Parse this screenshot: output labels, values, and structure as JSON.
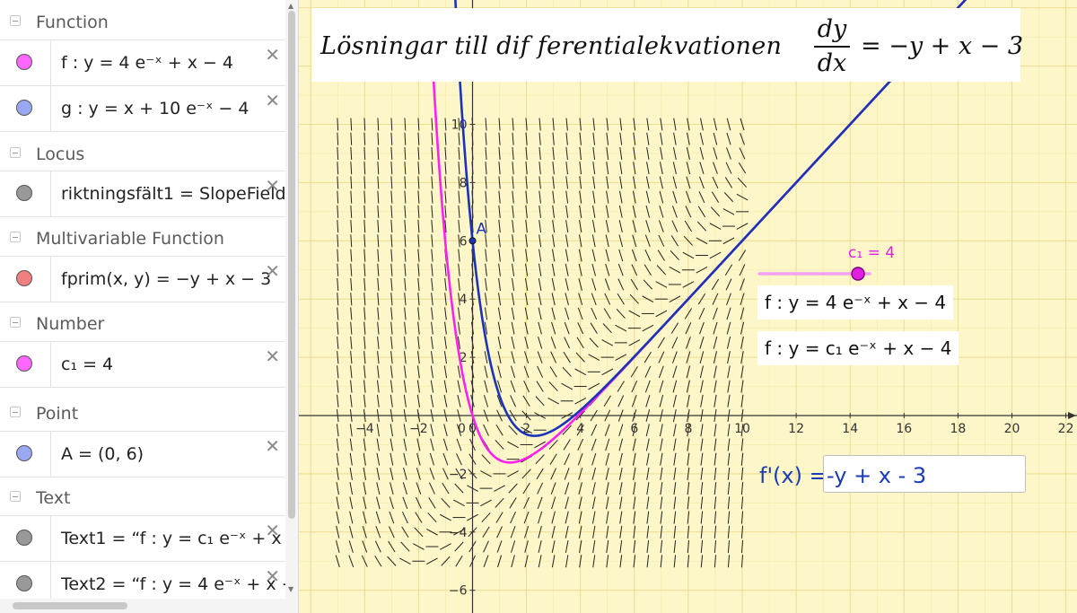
{
  "algebra": {
    "groups": [
      {
        "title": "Function",
        "items": [
          {
            "expr": "f : y = 4 e⁻ˣ + x − 4",
            "color": "#ff66ff"
          },
          {
            "expr": "g : y = x + 10 e⁻ˣ − 4",
            "color": "#99a8f0"
          }
        ]
      },
      {
        "title": "Locus",
        "items": [
          {
            "expr": "riktningsfält1 = SlopeField",
            "color": "#999999"
          }
        ]
      },
      {
        "title": "Multivariable Function",
        "items": [
          {
            "expr": "fprim(x, y) = −y + x − 3",
            "color": "#f08080"
          }
        ]
      },
      {
        "title": "Number",
        "items": [
          {
            "expr": "c₁ = 4",
            "color": "#ff66ff"
          }
        ]
      },
      {
        "title": "Point",
        "items": [
          {
            "expr": "A = (0, 6)",
            "color": "#99a8f0"
          }
        ]
      },
      {
        "title": "Text",
        "items": [
          {
            "expr": "Text1 = “f : y = c₁ e⁻ˣ + x",
            "color": "#999999"
          },
          {
            "expr": "Text2 = “f : y = 4 e⁻ˣ + x −",
            "color": "#999999"
          }
        ]
      }
    ],
    "close_glyph": "✕"
  },
  "graphics": {
    "title_text": "Lösningar till dif ferentialekvationen",
    "title_frac_num": "dy",
    "title_frac_den": "dx",
    "title_rhs": "= −y + x − 3",
    "text1": "f : y = 4 e⁻ˣ + x − 4",
    "text2": "f : y = c₁ e⁻ˣ + x − 4",
    "slider_label": "c₁ = 4",
    "input_label": "f'(x) =",
    "input_value": "-y + x - 3",
    "point_label": "A",
    "background_color": "#fdf6c8",
    "grid_color": "#e8d98a",
    "colors": {
      "f": "#ff22ee",
      "g": "#1a33b8",
      "slider": "#e020e0",
      "point": "#1a33b8"
    }
  },
  "chart_data": {
    "type": "line",
    "x_ticks": [
      -4,
      -2,
      0,
      2,
      4,
      6,
      8,
      10,
      12,
      14,
      16,
      18,
      20,
      22
    ],
    "y_ticks": [
      -6,
      -4,
      -2,
      2,
      4,
      6,
      8,
      10
    ],
    "xlim": [
      -6.1,
      22.3
    ],
    "ylim": [
      -6.8,
      14.3
    ],
    "grid": true,
    "series": [
      {
        "name": "f",
        "expr": "4e^(-x) + x - 4"
      },
      {
        "name": "g",
        "expr": "x + 10e^(-x) - 4"
      }
    ],
    "slope_field": {
      "expr": "-y + x - 3",
      "x_range": [
        -5,
        10
      ],
      "y_range": [
        -5,
        10
      ]
    },
    "point_A": [
      0,
      6
    ],
    "slider": {
      "name": "c₁",
      "value": 4
    }
  }
}
